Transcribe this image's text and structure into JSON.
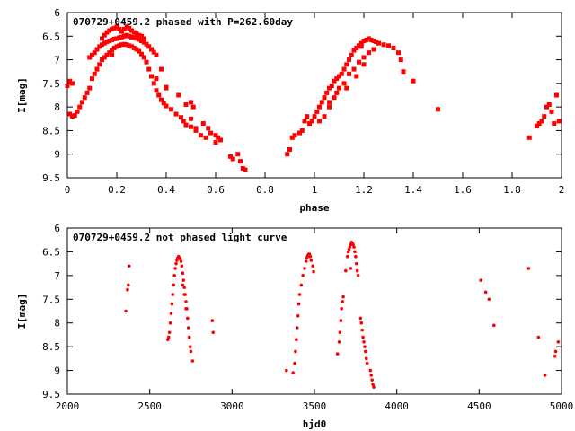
{
  "chart_data": [
    {
      "type": "scatter",
      "title": "070729+0459.2 phased with P=262.60day",
      "xlabel": "phase",
      "ylabel": "I[mag]",
      "xlim": [
        0,
        2
      ],
      "ylim": [
        9.5,
        6
      ],
      "y_inverted": true,
      "x_ticks": [
        "0",
        "0.2",
        "0.4",
        "0.6",
        "0.8",
        "1",
        "1.2",
        "1.4",
        "1.6",
        "1.8",
        "2"
      ],
      "y_ticks": [
        "6",
        "6.5",
        "7",
        "7.5",
        "8",
        "8.5",
        "9",
        "9.5"
      ],
      "marker": "cross",
      "color": "#ff0000",
      "grid": false,
      "points": [
        [
          0.0,
          7.55
        ],
        [
          0.01,
          7.45
        ],
        [
          0.02,
          7.5
        ],
        [
          0.01,
          8.15
        ],
        [
          0.02,
          8.2
        ],
        [
          0.03,
          8.18
        ],
        [
          0.04,
          8.1
        ],
        [
          0.05,
          8.0
        ],
        [
          0.06,
          7.9
        ],
        [
          0.07,
          7.8
        ],
        [
          0.08,
          7.7
        ],
        [
          0.09,
          7.6
        ],
        [
          0.1,
          7.4
        ],
        [
          0.11,
          7.3
        ],
        [
          0.12,
          7.2
        ],
        [
          0.13,
          7.1
        ],
        [
          0.14,
          7.0
        ],
        [
          0.15,
          6.95
        ],
        [
          0.16,
          6.9
        ],
        [
          0.17,
          6.85
        ],
        [
          0.18,
          6.8
        ],
        [
          0.19,
          6.75
        ],
        [
          0.2,
          6.72
        ],
        [
          0.21,
          6.7
        ],
        [
          0.22,
          6.68
        ],
        [
          0.23,
          6.67
        ],
        [
          0.24,
          6.68
        ],
        [
          0.25,
          6.7
        ],
        [
          0.26,
          6.72
        ],
        [
          0.27,
          6.75
        ],
        [
          0.28,
          6.78
        ],
        [
          0.29,
          6.82
        ],
        [
          0.3,
          6.88
        ],
        [
          0.31,
          6.95
        ],
        [
          0.32,
          7.05
        ],
        [
          0.33,
          7.2
        ],
        [
          0.34,
          7.35
        ],
        [
          0.35,
          7.5
        ],
        [
          0.36,
          7.65
        ],
        [
          0.37,
          7.75
        ],
        [
          0.38,
          7.85
        ],
        [
          0.39,
          7.92
        ],
        [
          0.4,
          7.98
        ],
        [
          0.42,
          8.05
        ],
        [
          0.44,
          8.15
        ],
        [
          0.46,
          8.22
        ],
        [
          0.47,
          8.3
        ],
        [
          0.48,
          8.38
        ],
        [
          0.5,
          8.42
        ],
        [
          0.52,
          8.5
        ],
        [
          0.54,
          8.6
        ],
        [
          0.56,
          8.65
        ],
        [
          0.09,
          6.95
        ],
        [
          0.1,
          6.9
        ],
        [
          0.11,
          6.85
        ],
        [
          0.12,
          6.78
        ],
        [
          0.13,
          6.72
        ],
        [
          0.14,
          6.68
        ],
        [
          0.15,
          6.65
        ],
        [
          0.16,
          6.62
        ],
        [
          0.17,
          6.6
        ],
        [
          0.18,
          6.58
        ],
        [
          0.19,
          6.56
        ],
        [
          0.2,
          6.55
        ],
        [
          0.21,
          6.53
        ],
        [
          0.22,
          6.52
        ],
        [
          0.23,
          6.5
        ],
        [
          0.24,
          6.48
        ],
        [
          0.25,
          6.5
        ],
        [
          0.26,
          6.52
        ],
        [
          0.27,
          6.53
        ],
        [
          0.28,
          6.55
        ],
        [
          0.29,
          6.57
        ],
        [
          0.3,
          6.6
        ],
        [
          0.31,
          6.63
        ],
        [
          0.32,
          6.67
        ],
        [
          0.33,
          6.72
        ],
        [
          0.34,
          6.78
        ],
        [
          0.35,
          6.84
        ],
        [
          0.36,
          6.9
        ],
        [
          0.14,
          6.55
        ],
        [
          0.15,
          6.48
        ],
        [
          0.16,
          6.42
        ],
        [
          0.17,
          6.38
        ],
        [
          0.18,
          6.35
        ],
        [
          0.19,
          6.33
        ],
        [
          0.2,
          6.3
        ],
        [
          0.21,
          6.35
        ],
        [
          0.22,
          6.4
        ],
        [
          0.23,
          6.35
        ],
        [
          0.24,
          6.3
        ],
        [
          0.25,
          6.33
        ],
        [
          0.26,
          6.38
        ],
        [
          0.27,
          6.42
        ],
        [
          0.28,
          6.45
        ],
        [
          0.29,
          6.48
        ],
        [
          0.3,
          6.5
        ],
        [
          0.31,
          6.55
        ],
        [
          0.18,
          6.9
        ],
        [
          0.12,
          7.2
        ],
        [
          0.38,
          7.2
        ],
        [
          0.36,
          7.4
        ],
        [
          0.4,
          7.6
        ],
        [
          0.4,
          7.58
        ],
        [
          0.45,
          7.75
        ],
        [
          0.48,
          7.95
        ],
        [
          0.5,
          7.9
        ],
        [
          0.51,
          8.0
        ],
        [
          0.5,
          8.25
        ],
        [
          0.52,
          8.45
        ],
        [
          0.55,
          8.35
        ],
        [
          0.57,
          8.45
        ],
        [
          0.58,
          8.55
        ],
        [
          0.6,
          8.6
        ],
        [
          0.61,
          8.65
        ],
        [
          0.6,
          8.75
        ],
        [
          0.62,
          8.7
        ],
        [
          0.66,
          9.05
        ],
        [
          0.67,
          9.1
        ],
        [
          0.69,
          9.0
        ],
        [
          0.7,
          9.15
        ],
        [
          0.71,
          9.3
        ],
        [
          0.72,
          9.33
        ],
        [
          0.89,
          9.0
        ],
        [
          0.9,
          8.9
        ],
        [
          0.91,
          8.65
        ],
        [
          0.92,
          8.6
        ],
        [
          0.94,
          8.55
        ],
        [
          0.95,
          8.5
        ],
        [
          0.96,
          8.3
        ],
        [
          0.97,
          8.2
        ],
        [
          0.98,
          8.35
        ],
        [
          0.99,
          8.3
        ],
        [
          1.0,
          8.2
        ],
        [
          1.01,
          8.1
        ],
        [
          1.02,
          8.0
        ],
        [
          1.03,
          7.9
        ],
        [
          1.04,
          7.8
        ],
        [
          1.05,
          7.7
        ],
        [
          1.06,
          7.6
        ],
        [
          1.07,
          7.55
        ],
        [
          1.08,
          7.45
        ],
        [
          1.09,
          7.4
        ],
        [
          1.1,
          7.35
        ],
        [
          1.11,
          7.3
        ],
        [
          1.12,
          7.2
        ],
        [
          1.13,
          7.1
        ],
        [
          1.14,
          7.0
        ],
        [
          1.15,
          6.9
        ],
        [
          1.16,
          6.8
        ],
        [
          1.17,
          6.75
        ],
        [
          1.18,
          6.7
        ],
        [
          1.19,
          6.65
        ],
        [
          1.2,
          6.6
        ],
        [
          1.21,
          6.58
        ],
        [
          1.22,
          6.55
        ],
        [
          1.23,
          6.58
        ],
        [
          1.24,
          6.6
        ],
        [
          1.25,
          6.62
        ],
        [
          1.26,
          6.65
        ],
        [
          1.28,
          6.68
        ],
        [
          1.3,
          6.7
        ],
        [
          1.32,
          6.75
        ],
        [
          1.34,
          6.85
        ],
        [
          1.35,
          7.0
        ],
        [
          1.36,
          7.25
        ],
        [
          1.4,
          7.45
        ],
        [
          1.5,
          8.05
        ],
        [
          1.02,
          8.3
        ],
        [
          1.04,
          8.2
        ],
        [
          1.06,
          8.0
        ],
        [
          1.08,
          7.8
        ],
        [
          1.1,
          7.6
        ],
        [
          1.12,
          7.5
        ],
        [
          1.14,
          7.3
        ],
        [
          1.16,
          7.2
        ],
        [
          1.18,
          7.05
        ],
        [
          1.2,
          6.95
        ],
        [
          1.22,
          6.85
        ],
        [
          1.24,
          6.78
        ],
        [
          1.2,
          7.1
        ],
        [
          1.06,
          7.9
        ],
        [
          1.09,
          7.7
        ],
        [
          1.13,
          7.6
        ],
        [
          1.17,
          7.35
        ],
        [
          1.19,
          6.72
        ],
        [
          1.87,
          8.65
        ],
        [
          1.9,
          8.4
        ],
        [
          1.91,
          8.35
        ],
        [
          1.92,
          8.3
        ],
        [
          1.93,
          8.2
        ],
        [
          1.94,
          8.0
        ],
        [
          1.95,
          7.95
        ],
        [
          1.96,
          8.1
        ],
        [
          1.97,
          8.35
        ],
        [
          1.98,
          7.75
        ],
        [
          1.99,
          8.3
        ]
      ]
    },
    {
      "type": "scatter",
      "title": "070729+0459.2 not phased light curve",
      "xlabel": "hjd0",
      "ylabel": "I[mag]",
      "xlim": [
        2000,
        5000
      ],
      "ylim": [
        9.5,
        6
      ],
      "y_inverted": true,
      "x_ticks": [
        "2000",
        "2500",
        "3000",
        "3500",
        "4000",
        "4500",
        "5000"
      ],
      "y_ticks": [
        "6",
        "6.5",
        "7",
        "7.5",
        "8",
        "8.5",
        "9",
        "9.5"
      ],
      "marker": "dot",
      "color": "#ff0000",
      "grid": false,
      "points": [
        [
          2355,
          7.75
        ],
        [
          2365,
          7.3
        ],
        [
          2370,
          7.2
        ],
        [
          2375,
          6.8
        ],
        [
          2610,
          8.35
        ],
        [
          2615,
          8.3
        ],
        [
          2620,
          8.2
        ],
        [
          2625,
          8.0
        ],
        [
          2630,
          7.8
        ],
        [
          2635,
          7.6
        ],
        [
          2640,
          7.4
        ],
        [
          2645,
          7.2
        ],
        [
          2650,
          7.0
        ],
        [
          2655,
          6.85
        ],
        [
          2660,
          6.75
        ],
        [
          2665,
          6.68
        ],
        [
          2670,
          6.63
        ],
        [
          2675,
          6.6
        ],
        [
          2680,
          6.62
        ],
        [
          2685,
          6.65
        ],
        [
          2690,
          6.7
        ],
        [
          2695,
          6.8
        ],
        [
          2700,
          6.95
        ],
        [
          2705,
          7.1
        ],
        [
          2710,
          7.25
        ],
        [
          2715,
          7.4
        ],
        [
          2720,
          7.55
        ],
        [
          2725,
          7.7
        ],
        [
          2730,
          7.9
        ],
        [
          2735,
          8.1
        ],
        [
          2740,
          8.3
        ],
        [
          2745,
          8.5
        ],
        [
          2750,
          8.6
        ],
        [
          2760,
          8.8
        ],
        [
          2700,
          7.2
        ],
        [
          2710,
          7.4
        ],
        [
          2720,
          7.7
        ],
        [
          2880,
          7.95
        ],
        [
          2885,
          8.2
        ],
        [
          3330,
          9.0
        ],
        [
          3370,
          9.05
        ],
        [
          3380,
          8.85
        ],
        [
          3385,
          8.6
        ],
        [
          3390,
          8.35
        ],
        [
          3395,
          8.1
        ],
        [
          3400,
          7.85
        ],
        [
          3405,
          7.6
        ],
        [
          3410,
          7.4
        ],
        [
          3420,
          7.2
        ],
        [
          3430,
          7.0
        ],
        [
          3440,
          6.85
        ],
        [
          3450,
          6.7
        ],
        [
          3455,
          6.62
        ],
        [
          3460,
          6.58
        ],
        [
          3465,
          6.55
        ],
        [
          3470,
          6.55
        ],
        [
          3475,
          6.6
        ],
        [
          3480,
          6.68
        ],
        [
          3490,
          6.8
        ],
        [
          3495,
          6.92
        ],
        [
          3640,
          8.65
        ],
        [
          3650,
          8.4
        ],
        [
          3655,
          8.2
        ],
        [
          3660,
          7.95
        ],
        [
          3665,
          7.7
        ],
        [
          3670,
          7.55
        ],
        [
          3675,
          7.45
        ],
        [
          3690,
          6.9
        ],
        [
          3700,
          6.6
        ],
        [
          3705,
          6.5
        ],
        [
          3710,
          6.45
        ],
        [
          3715,
          6.4
        ],
        [
          3720,
          6.35
        ],
        [
          3725,
          6.3
        ],
        [
          3730,
          6.32
        ],
        [
          3735,
          6.35
        ],
        [
          3740,
          6.4
        ],
        [
          3745,
          6.5
        ],
        [
          3750,
          6.6
        ],
        [
          3755,
          6.75
        ],
        [
          3760,
          6.9
        ],
        [
          3765,
          7.0
        ],
        [
          3720,
          6.85
        ],
        [
          3780,
          7.9
        ],
        [
          3785,
          8.0
        ],
        [
          3790,
          8.15
        ],
        [
          3795,
          8.3
        ],
        [
          3800,
          8.4
        ],
        [
          3805,
          8.5
        ],
        [
          3810,
          8.6
        ],
        [
          3815,
          8.75
        ],
        [
          3820,
          8.85
        ],
        [
          3840,
          9.0
        ],
        [
          3845,
          9.1
        ],
        [
          3850,
          9.2
        ],
        [
          3855,
          9.3
        ],
        [
          3860,
          9.35
        ],
        [
          4510,
          7.1
        ],
        [
          4540,
          7.35
        ],
        [
          4560,
          7.5
        ],
        [
          4590,
          8.05
        ],
        [
          4800,
          6.85
        ],
        [
          4860,
          8.3
        ],
        [
          4900,
          9.1
        ],
        [
          4960,
          8.7
        ],
        [
          4965,
          8.6
        ],
        [
          4980,
          8.4
        ]
      ]
    }
  ]
}
